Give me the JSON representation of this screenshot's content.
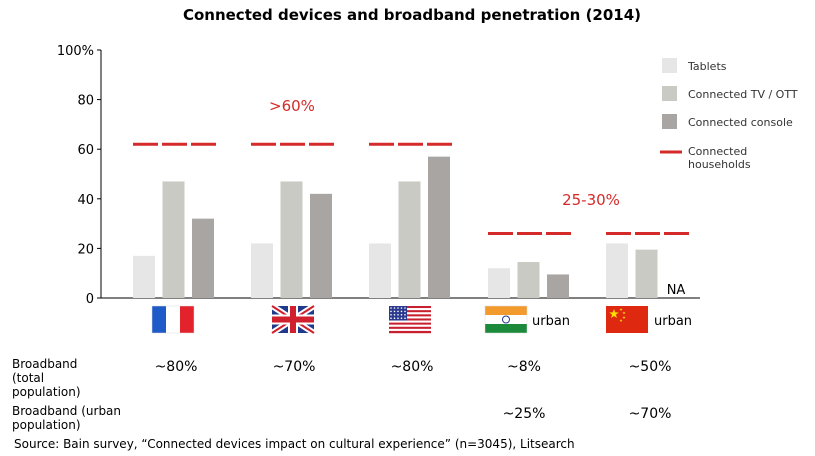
{
  "chart_data": {
    "type": "bar",
    "title": "Connected devices and broadband penetration (2014)",
    "ylim": [
      0,
      100
    ],
    "yticks": [
      "0",
      "20",
      "40",
      "60",
      "80",
      "100%"
    ],
    "categories": [
      "France",
      "United Kingdom",
      "United States",
      "India (urban)",
      "China (urban)"
    ],
    "series": [
      {
        "name": "Tablets",
        "color": "#e6e6e6",
        "values": [
          17,
          22,
          22,
          12,
          22
        ]
      },
      {
        "name": "Connected TV / OTT",
        "color": "#cacac5",
        "values": [
          47,
          47,
          47,
          14.5,
          19.5
        ]
      },
      {
        "name": "Connected console",
        "color": "#a9a5a2",
        "values": [
          32,
          42,
          57,
          9.5,
          null
        ]
      }
    ],
    "connected_households": {
      "name": "Connected households",
      "color": "#d42a2a",
      "values": [
        62,
        62,
        62,
        26,
        26
      ]
    },
    "na_label": "NA",
    "urban_label": "urban",
    "annotations": [
      ">60%",
      "25-30%"
    ],
    "broadband": {
      "total_label": "Broadband (total population)",
      "total_label_lines": [
        "Broadband",
        "(total",
        "population)"
      ],
      "total_values": [
        "~80%",
        "~70%",
        "~80%",
        "~8%",
        "~50%"
      ],
      "urban_label": "Broadband (urban population)",
      "urban_label_lines": [
        "Broadband (urban",
        "population)"
      ],
      "urban_values": [
        "",
        "",
        "",
        "~25%",
        "~70%"
      ]
    },
    "legend_labels": [
      "Tablets",
      "Connected TV / OTT",
      "Connected console"
    ],
    "legend_lines_label": [
      "Connected",
      "households"
    ],
    "source": "Source: Bain survey, “Connected devices impact on cultural experience” (n=3045), Litsearch"
  }
}
